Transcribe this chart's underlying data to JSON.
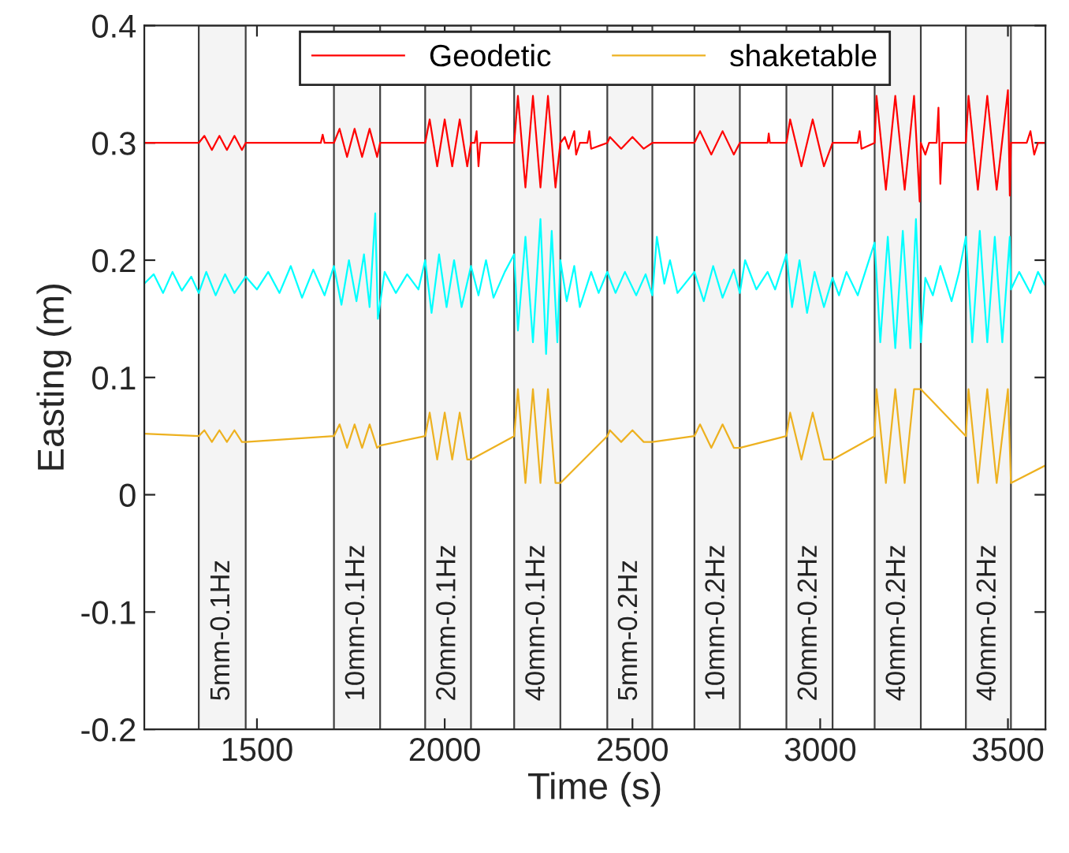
{
  "chart_data": {
    "type": "line",
    "xlabel": "Time (s)",
    "ylabel": "Easting (m)",
    "xlim": [
      1200,
      3600
    ],
    "xticks": [
      1500,
      2000,
      2500,
      3000,
      3500
    ],
    "ylim": [
      -0.2,
      0.4
    ],
    "yticks": [
      -0.2,
      -0.1,
      0,
      0.1,
      0.2,
      0.3,
      0.4
    ],
    "grid": false,
    "legend": "top",
    "line_style": "solid",
    "marker": "none",
    "series": [
      {
        "name": "Geodetic",
        "color": "#ff0000",
        "x": [
          1200,
          1345,
          1360,
          1380,
          1400,
          1420,
          1440,
          1460,
          1470,
          1670,
          1675,
          1680,
          1705,
          1720,
          1740,
          1760,
          1780,
          1800,
          1820,
          1828,
          1948,
          1960,
          1980,
          2000,
          2020,
          2040,
          2060,
          2070,
          2080,
          2085,
          2090,
          2095,
          2185,
          2195,
          2215,
          2235,
          2255,
          2275,
          2295,
          2308,
          2320,
          2330,
          2345,
          2350,
          2360,
          2380,
          2385,
          2390,
          2433,
          2440,
          2470,
          2500,
          2530,
          2553,
          2665,
          2680,
          2710,
          2740,
          2770,
          2786,
          2860,
          2863,
          2866,
          2910,
          2920,
          2950,
          2980,
          3010,
          3033,
          3100,
          3105,
          3110,
          3145,
          3150,
          3175,
          3200,
          3225,
          3250,
          3265,
          3268,
          3280,
          3290,
          3310,
          3315,
          3320,
          3325,
          3388,
          3395,
          3420,
          3445,
          3470,
          3500,
          3505,
          3508,
          3550,
          3560,
          3570,
          3580,
          3600
        ],
        "values": [
          0.3,
          0.3,
          0.306,
          0.294,
          0.306,
          0.294,
          0.306,
          0.294,
          0.3,
          0.3,
          0.307,
          0.3,
          0.3,
          0.312,
          0.288,
          0.312,
          0.288,
          0.312,
          0.288,
          0.3,
          0.3,
          0.32,
          0.28,
          0.32,
          0.28,
          0.32,
          0.28,
          0.3,
          0.3,
          0.31,
          0.28,
          0.3,
          0.3,
          0.34,
          0.262,
          0.34,
          0.262,
          0.34,
          0.262,
          0.3,
          0.305,
          0.295,
          0.31,
          0.29,
          0.3,
          0.3,
          0.31,
          0.295,
          0.3,
          0.305,
          0.295,
          0.305,
          0.295,
          0.3,
          0.3,
          0.31,
          0.29,
          0.31,
          0.29,
          0.3,
          0.3,
          0.308,
          0.3,
          0.3,
          0.32,
          0.28,
          0.32,
          0.28,
          0.3,
          0.3,
          0.31,
          0.295,
          0.3,
          0.34,
          0.26,
          0.34,
          0.26,
          0.34,
          0.25,
          0.3,
          0.29,
          0.3,
          0.3,
          0.33,
          0.265,
          0.3,
          0.3,
          0.34,
          0.26,
          0.34,
          0.26,
          0.345,
          0.255,
          0.3,
          0.3,
          0.31,
          0.29,
          0.3,
          0.3
        ]
      },
      {
        "color": "#00ffff",
        "x": [
          1200,
          1225,
          1250,
          1275,
          1300,
          1325,
          1345,
          1365,
          1390,
          1415,
          1440,
          1470,
          1500,
          1530,
          1560,
          1590,
          1620,
          1650,
          1680,
          1705,
          1725,
          1745,
          1765,
          1785,
          1800,
          1815,
          1822,
          1840,
          1870,
          1900,
          1930,
          1948,
          1965,
          1985,
          2005,
          2025,
          2045,
          2070,
          2090,
          2110,
          2130,
          2160,
          2185,
          2195,
          2215,
          2235,
          2255,
          2270,
          2285,
          2300,
          2308,
          2325,
          2345,
          2360,
          2390,
          2410,
          2433,
          2455,
          2480,
          2510,
          2535,
          2553,
          2565,
          2585,
          2600,
          2620,
          2665,
          2690,
          2715,
          2740,
          2770,
          2786,
          2800,
          2830,
          2860,
          2880,
          2910,
          2925,
          2945,
          2965,
          2985,
          3010,
          3033,
          3050,
          3070,
          3100,
          3120,
          3145,
          3160,
          3180,
          3200,
          3220,
          3240,
          3255,
          3268,
          3280,
          3300,
          3320,
          3350,
          3370,
          3388,
          3405,
          3425,
          3445,
          3465,
          3485,
          3505,
          3508,
          3530,
          3560,
          3580,
          3600
        ],
        "values": [
          0.18,
          0.188,
          0.172,
          0.19,
          0.174,
          0.186,
          0.172,
          0.19,
          0.17,
          0.188,
          0.172,
          0.186,
          0.175,
          0.19,
          0.172,
          0.195,
          0.168,
          0.192,
          0.17,
          0.195,
          0.162,
          0.2,
          0.165,
          0.205,
          0.16,
          0.24,
          0.15,
          0.19,
          0.172,
          0.188,
          0.175,
          0.2,
          0.155,
          0.205,
          0.16,
          0.2,
          0.16,
          0.195,
          0.17,
          0.2,
          0.168,
          0.19,
          0.205,
          0.14,
          0.22,
          0.13,
          0.235,
          0.12,
          0.225,
          0.13,
          0.2,
          0.165,
          0.195,
          0.16,
          0.19,
          0.172,
          0.19,
          0.172,
          0.19,
          0.17,
          0.188,
          0.17,
          0.22,
          0.18,
          0.2,
          0.172,
          0.19,
          0.165,
          0.195,
          0.168,
          0.192,
          0.172,
          0.2,
          0.175,
          0.19,
          0.175,
          0.205,
          0.16,
          0.2,
          0.155,
          0.19,
          0.16,
          0.185,
          0.17,
          0.19,
          0.17,
          0.19,
          0.215,
          0.13,
          0.22,
          0.125,
          0.225,
          0.125,
          0.235,
          0.13,
          0.185,
          0.17,
          0.195,
          0.165,
          0.19,
          0.22,
          0.13,
          0.225,
          0.13,
          0.22,
          0.13,
          0.22,
          0.175,
          0.19,
          0.172,
          0.19,
          0.178
        ]
      },
      {
        "name": "shaketable",
        "color": "#edb120",
        "x": [
          1200,
          1345,
          1360,
          1380,
          1400,
          1420,
          1440,
          1460,
          1470,
          1705,
          1720,
          1740,
          1760,
          1780,
          1800,
          1820,
          1828,
          1948,
          1960,
          1980,
          2000,
          2020,
          2040,
          2060,
          2070,
          2185,
          2195,
          2215,
          2235,
          2255,
          2275,
          2295,
          2308,
          2433,
          2440,
          2470,
          2500,
          2530,
          2553,
          2665,
          2680,
          2710,
          2740,
          2770,
          2786,
          2910,
          2920,
          2950,
          2980,
          3010,
          3033,
          3145,
          3150,
          3175,
          3200,
          3225,
          3250,
          3268,
          3388,
          3395,
          3420,
          3445,
          3470,
          3500,
          3508,
          3600
        ],
        "values": [
          0.052,
          0.05,
          0.055,
          0.045,
          0.055,
          0.045,
          0.055,
          0.045,
          0.045,
          0.05,
          0.06,
          0.04,
          0.06,
          0.04,
          0.06,
          0.04,
          0.042,
          0.05,
          0.07,
          0.03,
          0.07,
          0.03,
          0.07,
          0.03,
          0.03,
          0.05,
          0.09,
          0.01,
          0.09,
          0.01,
          0.09,
          0.01,
          0.01,
          0.05,
          0.055,
          0.045,
          0.055,
          0.045,
          0.045,
          0.05,
          0.06,
          0.04,
          0.06,
          0.04,
          0.04,
          0.05,
          0.07,
          0.03,
          0.07,
          0.03,
          0.03,
          0.05,
          0.09,
          0.01,
          0.09,
          0.01,
          0.09,
          0.09,
          0.05,
          0.09,
          0.01,
          0.09,
          0.01,
          0.09,
          0.01,
          0.025
        ]
      }
    ],
    "bands": [
      {
        "axis": "x",
        "from": 1345,
        "to": 1470,
        "label": "5mm-0.1Hz",
        "color": "#404040"
      },
      {
        "axis": "x",
        "from": 1705,
        "to": 1828,
        "label": "10mm-0.1Hz",
        "color": "#404040"
      },
      {
        "axis": "x",
        "from": 1948,
        "to": 2070,
        "label": "20mm-0.1Hz",
        "color": "#404040"
      },
      {
        "axis": "x",
        "from": 2185,
        "to": 2308,
        "label": "40mm-0.1Hz",
        "color": "#404040"
      },
      {
        "axis": "x",
        "from": 2433,
        "to": 2553,
        "label": "5mm-0.2Hz",
        "color": "#404040"
      },
      {
        "axis": "x",
        "from": 2665,
        "to": 2786,
        "label": "10mm-0.2Hz",
        "color": "#404040"
      },
      {
        "axis": "x",
        "from": 2910,
        "to": 3033,
        "label": "20mm-0.2Hz",
        "color": "#404040"
      },
      {
        "axis": "x",
        "from": 3145,
        "to": 3268,
        "label": "40mm-0.2Hz",
        "color": "#404040"
      },
      {
        "axis": "x",
        "from": 3388,
        "to": 3508,
        "label": "40mm-0.2Hz",
        "color": "#404040"
      }
    ]
  }
}
